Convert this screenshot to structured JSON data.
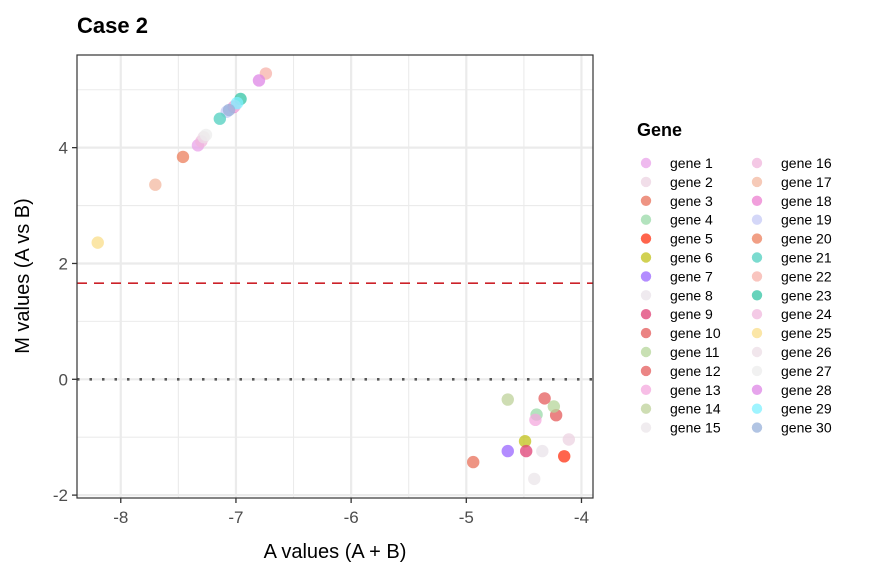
{
  "chart_data": {
    "type": "scatter",
    "title": "Case 2",
    "xlabel": "A values (A + B)",
    "ylabel": "M values (A vs B)",
    "xlim": [
      -8.38,
      -3.9
    ],
    "ylim": [
      -2.05,
      5.6
    ],
    "x_ticks": [
      -8,
      -7,
      -6,
      -5,
      -4
    ],
    "y_ticks": [
      -2,
      0,
      2,
      4
    ],
    "x_tick_labels": [
      "-8",
      "-7",
      "-6",
      "-5",
      "-4"
    ],
    "y_tick_labels": [
      "-2",
      "0",
      "2",
      "4"
    ],
    "grid": true,
    "reference_lines": [
      {
        "name": "threshold",
        "axis": "y",
        "value": 1.66,
        "style": "dashed",
        "color": "#cc2229"
      },
      {
        "name": "zero",
        "axis": "y",
        "value": 0,
        "style": "dotted",
        "color": "#555555"
      }
    ],
    "legend": {
      "title": "Gene",
      "placement": "right",
      "columns": 2
    },
    "series": [
      {
        "name": "gene 1",
        "color": "#e9a3e9",
        "x": -7.33,
        "y": 4.04
      },
      {
        "name": "gene 2",
        "color": "#ecd3e2",
        "x": -4.11,
        "y": -1.04
      },
      {
        "name": "gene 3",
        "color": "#e8705a",
        "x": -4.94,
        "y": -1.43
      },
      {
        "name": "gene 4",
        "color": "#9ad9a8",
        "x": -4.39,
        "y": -0.61
      },
      {
        "name": "gene 5",
        "color": "#ff3010",
        "x": -4.15,
        "y": -1.33
      },
      {
        "name": "gene 6",
        "color": "#c2c21a",
        "x": -4.49,
        "y": -1.07
      },
      {
        "name": "gene 7",
        "color": "#9966ff",
        "x": -4.64,
        "y": -1.24
      },
      {
        "name": "gene 8",
        "color": "#e9e3e9",
        "x": -4.34,
        "y": -1.24
      },
      {
        "name": "gene 9",
        "color": "#df3f74",
        "x": -4.48,
        "y": -1.24
      },
      {
        "name": "gene 10",
        "color": "#e45a5a",
        "x": -4.22,
        "y": -0.62
      },
      {
        "name": "gene 11",
        "color": "#b5d69a",
        "x": -4.24,
        "y": -0.47
      },
      {
        "name": "gene 12",
        "color": "#e45c5c",
        "x": -4.32,
        "y": -0.33
      },
      {
        "name": "gene 13",
        "color": "#f4a8dd",
        "x": -4.4,
        "y": -0.7
      },
      {
        "name": "gene 14",
        "color": "#bed19a",
        "x": -4.64,
        "y": -0.35
      },
      {
        "name": "gene 15",
        "color": "#ebe6e9",
        "x": -4.41,
        "y": -1.72
      },
      {
        "name": "gene 16",
        "color": "#f0b6dc",
        "x": -7.3,
        "y": 4.11
      },
      {
        "name": "gene 17",
        "color": "#f3b8a0",
        "x": -7.7,
        "y": 3.36
      },
      {
        "name": "gene 18",
        "color": "#ec7fd0",
        "x": -7.02,
        "y": 4.7
      },
      {
        "name": "gene 19",
        "color": "#c6c9f5",
        "x": -7.08,
        "y": 4.62
      },
      {
        "name": "gene 20",
        "color": "#ec7f5c",
        "x": -7.46,
        "y": 3.84
      },
      {
        "name": "gene 21",
        "color": "#4fcfbf",
        "x": -7.14,
        "y": 4.5
      },
      {
        "name": "gene 22",
        "color": "#f7b1a9",
        "x": -6.74,
        "y": 5.28
      },
      {
        "name": "gene 23",
        "color": "#33c4a4",
        "x": -6.96,
        "y": 4.84
      },
      {
        "name": "gene 24",
        "color": "#f0b8dd",
        "x": -7.01,
        "y": 4.72
      },
      {
        "name": "gene 25",
        "color": "#fadd8a",
        "x": -8.2,
        "y": 2.36
      },
      {
        "name": "gene 26",
        "color": "#ecdde6",
        "x": -7.28,
        "y": 4.18
      },
      {
        "name": "gene 27",
        "color": "#ececec",
        "x": -7.26,
        "y": 4.22
      },
      {
        "name": "gene 28",
        "color": "#dd85e5",
        "x": -6.8,
        "y": 5.16
      },
      {
        "name": "gene 29",
        "color": "#7ff0ff",
        "x": -6.99,
        "y": 4.77
      },
      {
        "name": "gene 30",
        "color": "#97b0d9",
        "x": -7.06,
        "y": 4.65
      }
    ]
  }
}
